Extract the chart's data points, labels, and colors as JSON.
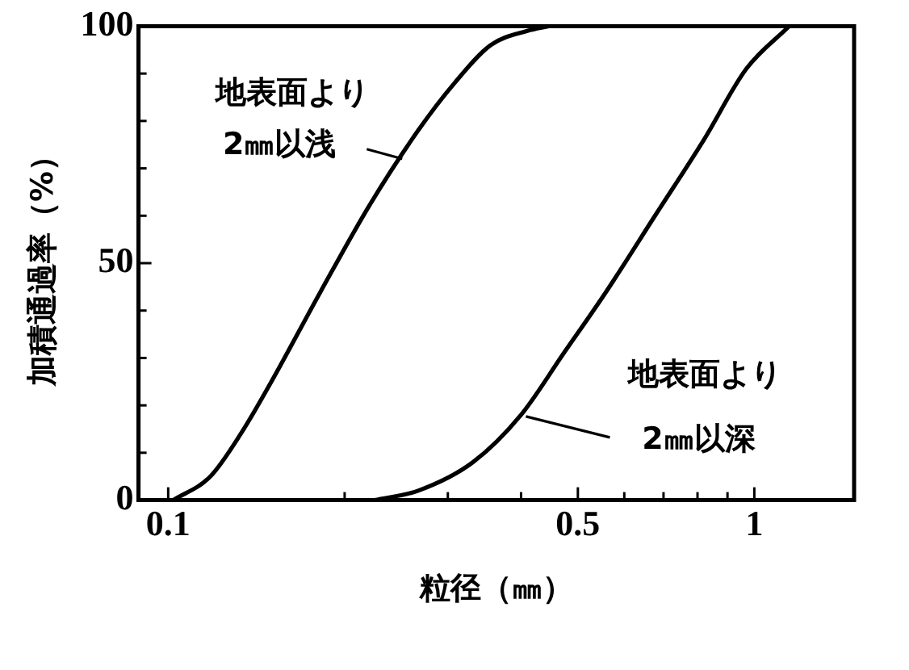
{
  "chart_data": {
    "type": "line",
    "xlabel": "粒径（㎜）",
    "ylabel": "加積通過率（%）",
    "log": "x",
    "grid": false,
    "legend": false,
    "marker": "none",
    "line_style": "solid",
    "xlim": [
      0.089,
      1.48
    ],
    "ylim": [
      0,
      100
    ],
    "xticks": [
      0.1,
      {
        "value": 0.2,
        "label": null
      },
      {
        "value": 0.3,
        "label": null
      },
      {
        "value": 0.4,
        "label": null
      },
      0.5,
      {
        "value": 0.6,
        "label": null
      },
      {
        "value": 0.7,
        "label": null
      },
      {
        "value": 0.8,
        "label": null
      },
      {
        "value": 0.9,
        "label": null
      },
      1
    ],
    "yticks": [
      0,
      {
        "value": 10,
        "label": null
      },
      {
        "value": 20,
        "label": null
      },
      {
        "value": 30,
        "label": null
      },
      {
        "value": 40,
        "label": null
      },
      50,
      {
        "value": 60,
        "label": null
      },
      {
        "value": 70,
        "label": null
      },
      {
        "value": 80,
        "label": null
      },
      {
        "value": 90,
        "label": null
      },
      100
    ],
    "series": [
      {
        "color": "#000000",
        "x": [
          0.102,
          0.118,
          0.133,
          0.15,
          0.182,
          0.22,
          0.267,
          0.308,
          0.355,
          0.41,
          0.446
        ],
        "values": [
          0,
          5,
          14,
          25,
          44,
          62,
          78,
          88,
          96,
          99,
          100
        ]
      },
      {
        "color": "#000000",
        "x": [
          0.225,
          0.267,
          0.331,
          0.4,
          0.473,
          0.559,
          0.677,
          0.82,
          0.969,
          1.147
        ],
        "values": [
          0,
          2,
          8,
          18,
          31,
          44,
          60,
          76,
          91,
          100
        ]
      }
    ],
    "annotations": [
      {
        "text": "地表面より\n2㎜以浅",
        "x": 0.254,
        "y": 72
      },
      {
        "text": "地表面より\n2㎜以深",
        "x": 0.4,
        "y": 18
      }
    ]
  }
}
